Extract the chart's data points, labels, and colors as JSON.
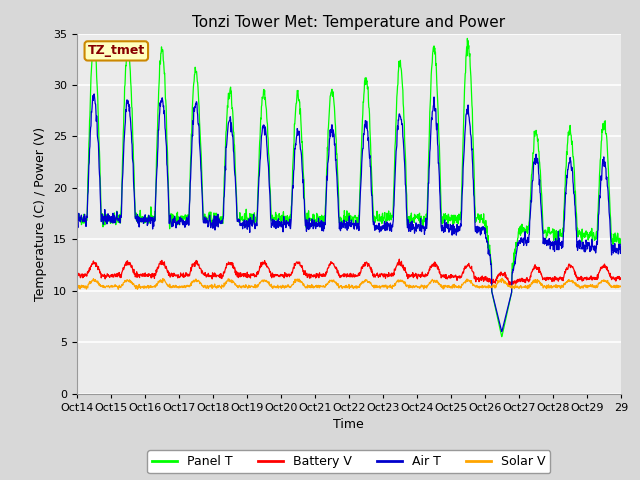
{
  "title": "Tonzi Tower Met: Temperature and Power",
  "xlabel": "Time",
  "ylabel": "Temperature (C) / Power (V)",
  "ylim": [
    0,
    35
  ],
  "yticks": [
    0,
    5,
    10,
    15,
    20,
    25,
    30,
    35
  ],
  "x_labels": [
    "Oct 14",
    "Oct 15",
    "Oct 16",
    "Oct 17",
    "Oct 18",
    "Oct 19",
    "Oct 20",
    "Oct 21",
    "Oct 22",
    "Oct 23",
    "Oct 24",
    "Oct 25",
    "Oct 26",
    "Oct 27",
    "Oct 28",
    "Oct 29"
  ],
  "panel_color": "#00FF00",
  "battery_color": "#FF0000",
  "air_color": "#0000CC",
  "solar_color": "#FFA500",
  "fig_bg_color": "#D8D8D8",
  "plot_bg_color": "#EBEBEB",
  "grid_color": "#FFFFFF",
  "legend_labels": [
    "Panel T",
    "Battery V",
    "Air T",
    "Solar V"
  ],
  "annotation_text": "TZ_tmet",
  "annotation_bg": "#FFFFC0",
  "annotation_border": "#CC8800",
  "annotation_fg": "#880000",
  "title_fontsize": 11,
  "axis_fontsize": 9,
  "tick_fontsize": 8,
  "legend_fontsize": 9
}
